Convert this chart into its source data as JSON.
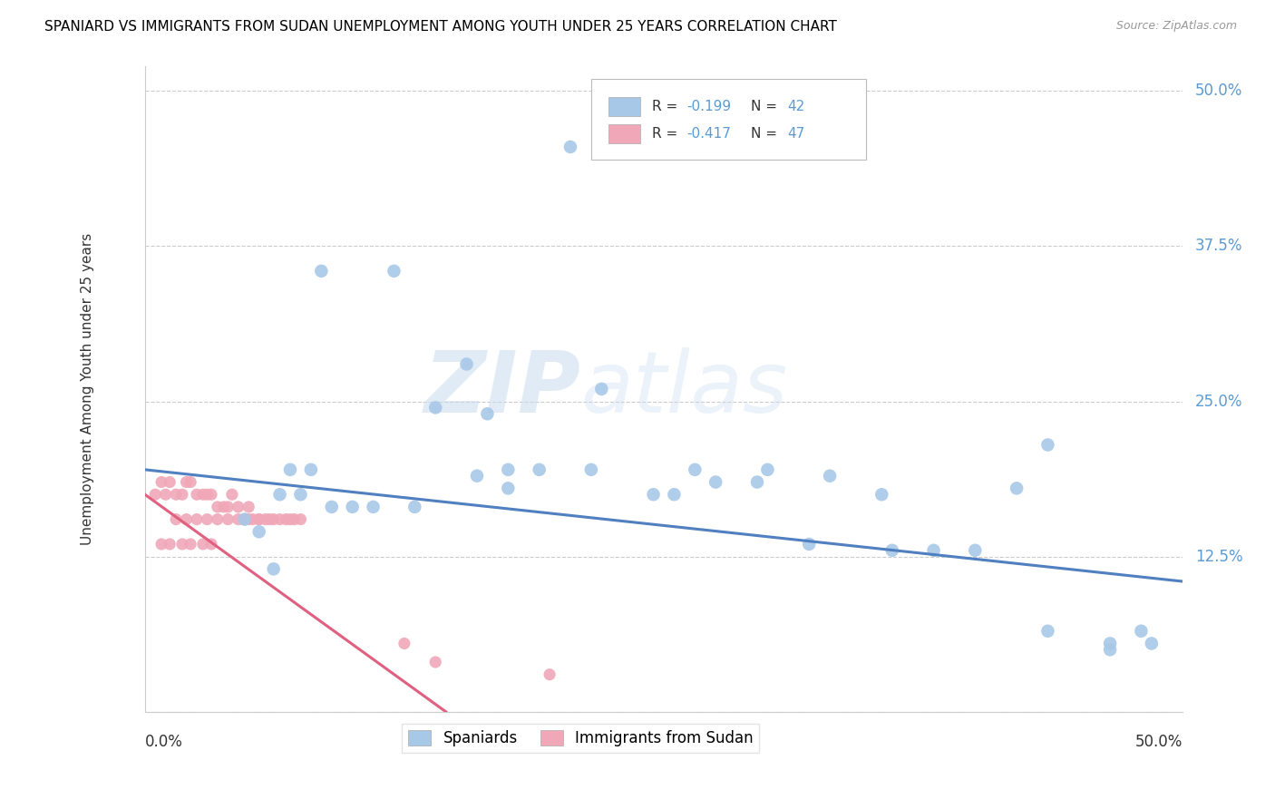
{
  "title": "SPANIARD VS IMMIGRANTS FROM SUDAN UNEMPLOYMENT AMONG YOUTH UNDER 25 YEARS CORRELATION CHART",
  "source": "Source: ZipAtlas.com",
  "ylabel": "Unemployment Among Youth under 25 years",
  "xlim": [
    0.0,
    0.5
  ],
  "ylim": [
    0.0,
    0.52
  ],
  "yticks": [
    0.0,
    0.125,
    0.25,
    0.375,
    0.5
  ],
  "ytick_labels": [
    "",
    "12.5%",
    "25.0%",
    "37.5%",
    "50.0%"
  ],
  "legend_r1_pre": "R = ",
  "legend_r1_val": "-0.199",
  "legend_n1_pre": "  N = ",
  "legend_n1_val": "42",
  "legend_r2_pre": "R = ",
  "legend_r2_val": "-0.417",
  "legend_n2_pre": "  N = ",
  "legend_n2_val": "47",
  "legend_label1": "Spaniards",
  "legend_label2": "Immigrants from Sudan",
  "blue_color": "#A8C8E8",
  "pink_color": "#F0A8B8",
  "blue_line_color": "#5080C0",
  "pink_line_color": "#E06080",
  "watermark_zip": "ZIP",
  "watermark_atlas": "atlas",
  "spaniards_x": [
    0.205,
    0.12,
    0.155,
    0.085,
    0.22,
    0.07,
    0.08,
    0.065,
    0.075,
    0.09,
    0.1,
    0.11,
    0.13,
    0.14,
    0.16,
    0.175,
    0.19,
    0.215,
    0.245,
    0.255,
    0.165,
    0.175,
    0.265,
    0.275,
    0.3,
    0.33,
    0.355,
    0.295,
    0.38,
    0.42,
    0.435,
    0.465,
    0.485,
    0.465,
    0.048,
    0.055,
    0.062,
    0.32,
    0.36,
    0.4,
    0.435,
    0.48
  ],
  "spaniards_y": [
    0.455,
    0.355,
    0.28,
    0.355,
    0.26,
    0.195,
    0.195,
    0.175,
    0.175,
    0.165,
    0.165,
    0.165,
    0.165,
    0.245,
    0.19,
    0.18,
    0.195,
    0.195,
    0.175,
    0.175,
    0.24,
    0.195,
    0.195,
    0.185,
    0.195,
    0.19,
    0.175,
    0.185,
    0.13,
    0.18,
    0.215,
    0.05,
    0.055,
    0.055,
    0.155,
    0.145,
    0.115,
    0.135,
    0.13,
    0.13,
    0.065,
    0.065
  ],
  "immigrants_x": [
    0.005,
    0.008,
    0.01,
    0.012,
    0.015,
    0.018,
    0.02,
    0.022,
    0.025,
    0.028,
    0.03,
    0.032,
    0.035,
    0.038,
    0.04,
    0.042,
    0.045,
    0.048,
    0.05,
    0.052,
    0.055,
    0.058,
    0.06,
    0.062,
    0.065,
    0.068,
    0.07,
    0.072,
    0.075,
    0.015,
    0.02,
    0.025,
    0.03,
    0.035,
    0.04,
    0.045,
    0.05,
    0.055,
    0.008,
    0.012,
    0.018,
    0.022,
    0.028,
    0.032,
    0.125,
    0.195,
    0.14
  ],
  "immigrants_y": [
    0.175,
    0.185,
    0.175,
    0.185,
    0.175,
    0.175,
    0.185,
    0.185,
    0.175,
    0.175,
    0.175,
    0.175,
    0.165,
    0.165,
    0.165,
    0.175,
    0.165,
    0.155,
    0.165,
    0.155,
    0.155,
    0.155,
    0.155,
    0.155,
    0.155,
    0.155,
    0.155,
    0.155,
    0.155,
    0.155,
    0.155,
    0.155,
    0.155,
    0.155,
    0.155,
    0.155,
    0.155,
    0.155,
    0.135,
    0.135,
    0.135,
    0.135,
    0.135,
    0.135,
    0.055,
    0.03,
    0.04
  ],
  "blue_trendline_x": [
    0.0,
    0.5
  ],
  "blue_trendline_y": [
    0.195,
    0.105
  ],
  "pink_trendline_x": [
    0.0,
    0.145
  ],
  "pink_trendline_y": [
    0.175,
    0.0
  ]
}
